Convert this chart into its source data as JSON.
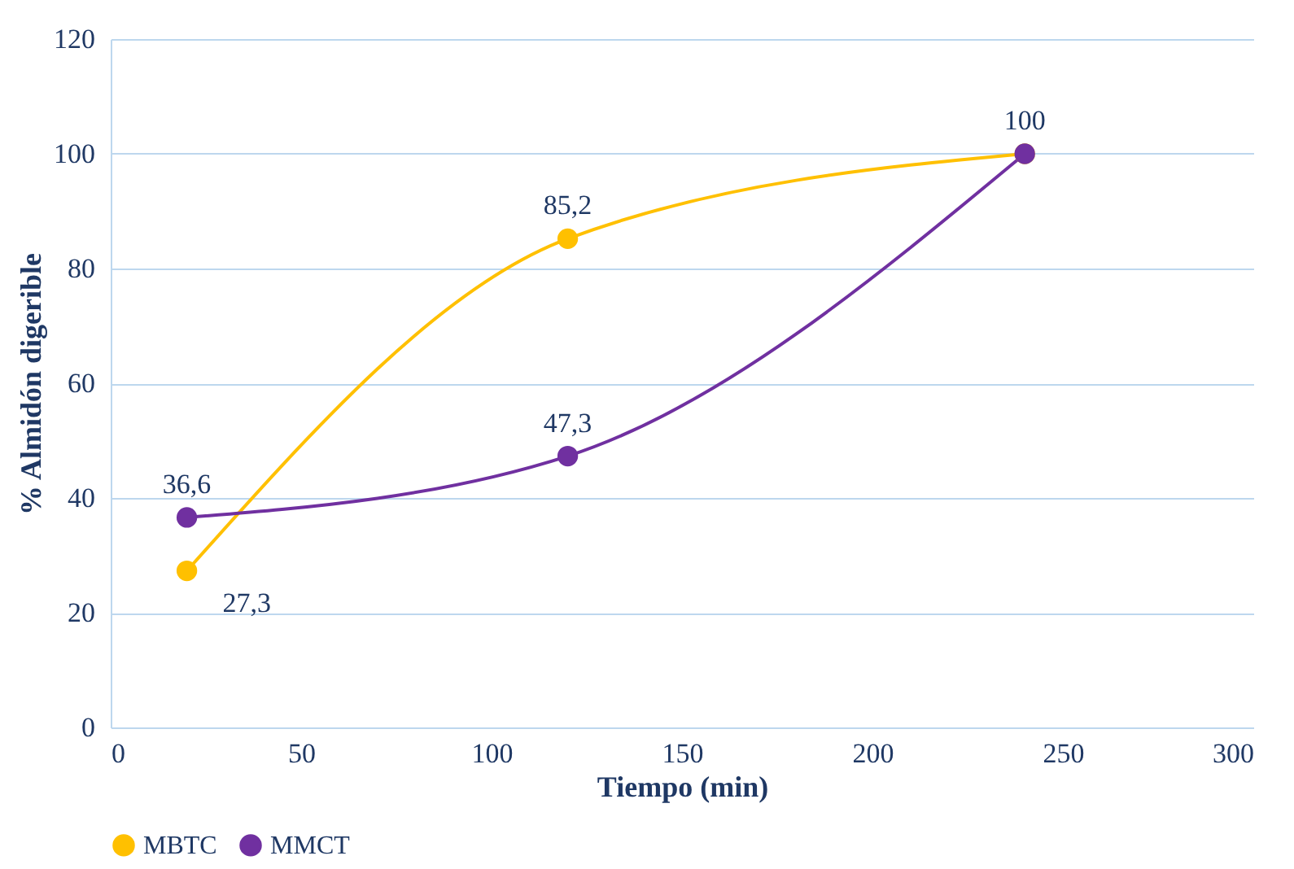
{
  "chart_data": {
    "type": "line",
    "xlabel": "Tiempo  (min)",
    "ylabel": "% Almidón digerible",
    "x": [
      20,
      120,
      240
    ],
    "series": [
      {
        "name": "MBTC",
        "color": "#ffc000",
        "values": [
          27.3,
          85.2,
          100
        ],
        "value_labels": [
          "27,3",
          "85,2",
          null
        ]
      },
      {
        "name": "MMCT",
        "color": "#7030a0",
        "values": [
          36.6,
          47.3,
          100
        ],
        "value_labels": [
          "36,6",
          "47,3",
          "100"
        ]
      }
    ],
    "xlim": [
      0,
      300
    ],
    "xticks": [
      0,
      50,
      100,
      150,
      200,
      250,
      300
    ],
    "ylim": [
      0,
      120
    ],
    "yticks": [
      0,
      20,
      40,
      60,
      80,
      100,
      120
    ],
    "grid": "y",
    "legend": "bottom",
    "marker": "circle",
    "line_style": "solid"
  }
}
